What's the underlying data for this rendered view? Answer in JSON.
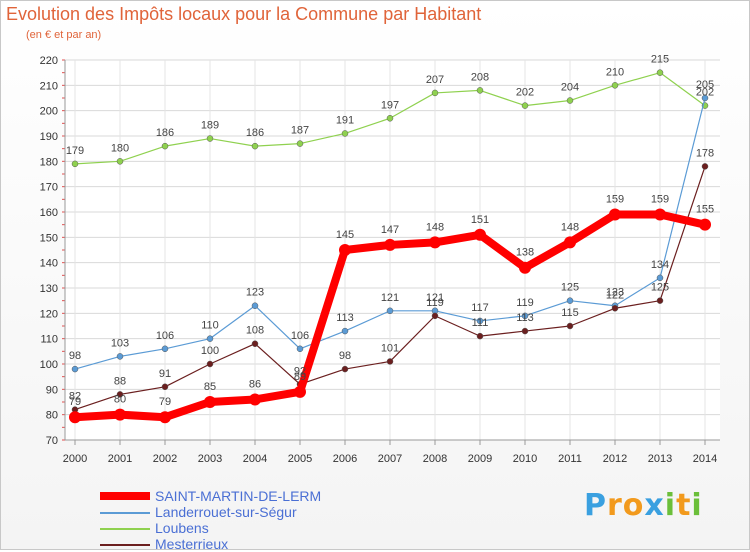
{
  "chart_data": {
    "type": "line",
    "title": "Evolution des Impôts locaux pour la Commune par Habitant",
    "subtitle": "(en € et par an)",
    "x": [
      "2000",
      "2001",
      "2002",
      "2003",
      "2004",
      "2005",
      "2006",
      "2007",
      "2008",
      "2009",
      "2010",
      "2011",
      "2012",
      "2013",
      "2014"
    ],
    "ylim": [
      70,
      220
    ],
    "yticks": [
      70,
      80,
      90,
      100,
      110,
      120,
      130,
      140,
      150,
      160,
      170,
      180,
      190,
      200,
      210,
      220
    ],
    "grid": true,
    "series": [
      {
        "name": "SAINT-MARTIN-DE-LERM",
        "color": "#ff0000",
        "values": [
          79,
          80,
          79,
          85,
          86,
          89,
          145,
          147,
          148,
          151,
          138,
          148,
          159,
          159,
          155
        ]
      },
      {
        "name": "Landerrouet-sur-Ségur",
        "color": "#5b9bd5",
        "values": [
          98,
          103,
          106,
          110,
          123,
          106,
          113,
          121,
          121,
          117,
          119,
          125,
          123,
          134,
          205
        ]
      },
      {
        "name": "Loubens",
        "color": "#8fd14f",
        "values": [
          179,
          180,
          186,
          189,
          186,
          187,
          191,
          197,
          207,
          208,
          202,
          204,
          210,
          215,
          202
        ]
      },
      {
        "name": "Mesterrieux",
        "color": "#6b1f1f",
        "values": [
          82,
          88,
          91,
          100,
          108,
          92,
          98,
          101,
          119,
          111,
          113,
          115,
          122,
          125,
          178
        ]
      }
    ],
    "labels": {
      "SAINT-MARTIN-DE-LERM": [
        "79",
        "80",
        "79",
        "85",
        "86",
        "89",
        "145",
        "147",
        "148",
        "151",
        "138",
        "148",
        "159",
        "159",
        "155"
      ],
      "Landerrouet-sur-Ségur": [
        "98",
        "103",
        "106",
        "110",
        "123",
        "106",
        "113",
        "121",
        "121",
        "117",
        "119",
        "125",
        "123",
        "134",
        "205"
      ],
      "Loubens": [
        "179",
        "180",
        "186",
        "189",
        "186",
        "187",
        "191",
        "197",
        "207",
        "208",
        "202",
        "204",
        "210",
        "215",
        "202"
      ],
      "Mesterrieux": [
        "82",
        "88",
        "91",
        "100",
        "108",
        "92",
        "98",
        "101",
        "119",
        "111",
        "113",
        "115",
        "122",
        "125",
        "178"
      ]
    }
  },
  "legend": [
    "SAINT-MARTIN-DE-LERM",
    "Landerrouet-sur-Ségur",
    "Loubens",
    "Mesterrieux"
  ],
  "logo": {
    "text": "Proxiti",
    "letters": [
      "P",
      "r",
      "o",
      "x",
      "i",
      "t",
      "i"
    ],
    "colors": [
      "#3aa0e0",
      "#f29a1d",
      "#f29a1d",
      "#3aa0e0",
      "#6bbf3a",
      "#f29a1d",
      "#6bbf3a"
    ]
  }
}
